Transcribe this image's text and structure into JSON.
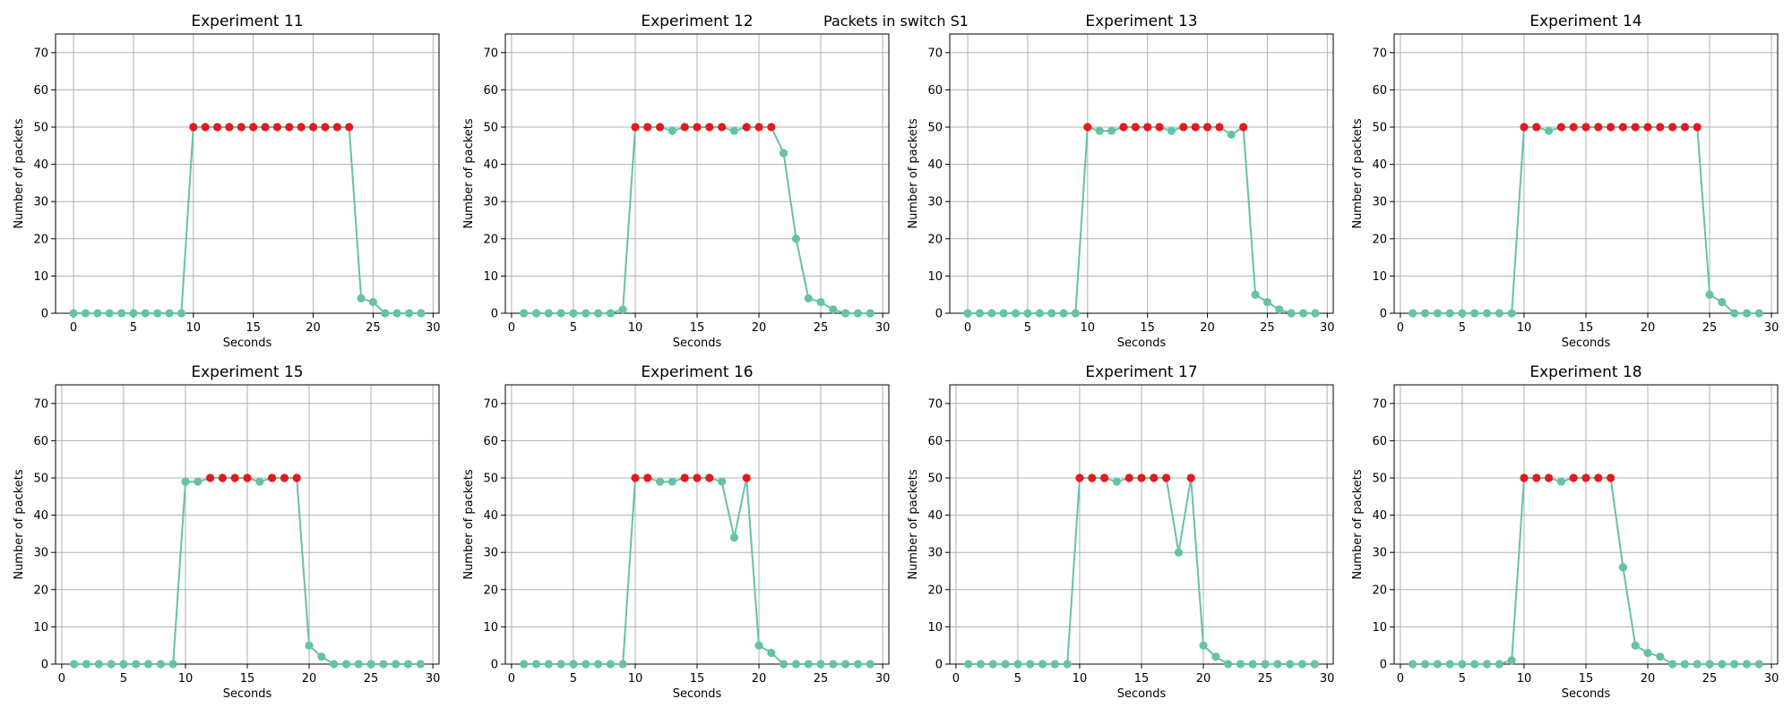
{
  "figure": {
    "suptitle": "Packets in switch S1",
    "colors": {
      "line": "#66c2a5",
      "point": "#66c2a5",
      "highlight": "#e41a1c",
      "grid": "#b0b0b0"
    }
  },
  "chart_data": [
    {
      "type": "line",
      "title": "Experiment 11",
      "xlabel": "Seconds",
      "ylabel": "Number of packets",
      "xlim": [
        -1.5,
        30.5
      ],
      "ylim": [
        0,
        75
      ],
      "xticks": [
        0,
        5,
        10,
        15,
        20,
        25,
        30
      ],
      "yticks": [
        0,
        10,
        20,
        30,
        40,
        50,
        60,
        70
      ],
      "grid": true,
      "x": [
        0,
        1,
        2,
        3,
        4,
        5,
        6,
        7,
        8,
        9,
        10,
        11,
        12,
        13,
        14,
        15,
        16,
        17,
        18,
        19,
        20,
        21,
        22,
        23,
        24,
        25,
        26,
        27,
        28,
        29
      ],
      "y": [
        0,
        0,
        0,
        0,
        0,
        0,
        0,
        0,
        0,
        0,
        50,
        50,
        50,
        50,
        50,
        50,
        50,
        50,
        50,
        50,
        50,
        50,
        50,
        50,
        4,
        3,
        0,
        0,
        0,
        0
      ],
      "highlight_x": [
        10,
        11,
        12,
        13,
        14,
        15,
        16,
        17,
        18,
        19,
        20,
        21,
        22,
        23
      ]
    },
    {
      "type": "line",
      "title": "Experiment 12",
      "xlabel": "Seconds",
      "ylabel": "Number of packets",
      "xlim": [
        -0.5,
        30.5
      ],
      "ylim": [
        0,
        75
      ],
      "xticks": [
        0,
        5,
        10,
        15,
        20,
        25,
        30
      ],
      "yticks": [
        0,
        10,
        20,
        30,
        40,
        50,
        60,
        70
      ],
      "grid": true,
      "x": [
        1,
        2,
        3,
        4,
        5,
        6,
        7,
        8,
        9,
        10,
        11,
        12,
        13,
        14,
        15,
        16,
        17,
        18,
        19,
        20,
        21,
        22,
        23,
        24,
        25,
        26,
        27,
        28,
        29
      ],
      "y": [
        0,
        0,
        0,
        0,
        0,
        0,
        0,
        0,
        1,
        50,
        50,
        50,
        49,
        50,
        50,
        50,
        50,
        49,
        50,
        50,
        50,
        43,
        20,
        4,
        3,
        1,
        0,
        0,
        0
      ],
      "highlight_x": [
        10,
        11,
        12,
        14,
        15,
        16,
        17,
        19,
        20,
        21
      ]
    },
    {
      "type": "line",
      "title": "Experiment 13",
      "xlabel": "Seconds",
      "ylabel": "Number of packets",
      "xlim": [
        -1.5,
        30.5
      ],
      "ylim": [
        0,
        75
      ],
      "xticks": [
        0,
        5,
        10,
        15,
        20,
        25,
        30
      ],
      "yticks": [
        0,
        10,
        20,
        30,
        40,
        50,
        60,
        70
      ],
      "grid": true,
      "x": [
        0,
        1,
        2,
        3,
        4,
        5,
        6,
        7,
        8,
        9,
        10,
        11,
        12,
        13,
        14,
        15,
        16,
        17,
        18,
        19,
        20,
        21,
        22,
        23,
        24,
        25,
        26,
        27,
        28,
        29
      ],
      "y": [
        0,
        0,
        0,
        0,
        0,
        0,
        0,
        0,
        0,
        0,
        50,
        49,
        49,
        50,
        50,
        50,
        50,
        49,
        50,
        50,
        50,
        50,
        48,
        50,
        5,
        3,
        1,
        0,
        0,
        0
      ],
      "highlight_x": [
        10,
        13,
        14,
        15,
        16,
        18,
        19,
        20,
        21,
        23
      ]
    },
    {
      "type": "line",
      "title": "Experiment 14",
      "xlabel": "Seconds",
      "ylabel": "Number of packets",
      "xlim": [
        -0.5,
        30.5
      ],
      "ylim": [
        0,
        75
      ],
      "xticks": [
        0,
        5,
        10,
        15,
        20,
        25,
        30
      ],
      "yticks": [
        0,
        10,
        20,
        30,
        40,
        50,
        60,
        70
      ],
      "grid": true,
      "x": [
        1,
        2,
        3,
        4,
        5,
        6,
        7,
        8,
        9,
        10,
        11,
        12,
        13,
        14,
        15,
        16,
        17,
        18,
        19,
        20,
        21,
        22,
        23,
        24,
        25,
        26,
        27,
        28,
        29
      ],
      "y": [
        0,
        0,
        0,
        0,
        0,
        0,
        0,
        0,
        0,
        50,
        50,
        49,
        50,
        50,
        50,
        50,
        50,
        50,
        50,
        50,
        50,
        50,
        50,
        50,
        5,
        3,
        0,
        0,
        0
      ],
      "highlight_x": [
        10,
        11,
        13,
        14,
        15,
        16,
        17,
        18,
        19,
        20,
        21,
        22,
        23,
        24
      ]
    },
    {
      "type": "line",
      "title": "Experiment 15",
      "xlabel": "Seconds",
      "ylabel": "Number of packets",
      "xlim": [
        -0.5,
        30.5
      ],
      "ylim": [
        0,
        75
      ],
      "xticks": [
        0,
        5,
        10,
        15,
        20,
        25,
        30
      ],
      "yticks": [
        0,
        10,
        20,
        30,
        40,
        50,
        60,
        70
      ],
      "grid": true,
      "x": [
        1,
        2,
        3,
        4,
        5,
        6,
        7,
        8,
        9,
        10,
        11,
        12,
        13,
        14,
        15,
        16,
        17,
        18,
        19,
        20,
        21,
        22,
        23,
        24,
        25,
        26,
        27,
        28,
        29
      ],
      "y": [
        0,
        0,
        0,
        0,
        0,
        0,
        0,
        0,
        0,
        49,
        49,
        50,
        50,
        50,
        50,
        49,
        50,
        50,
        50,
        5,
        2,
        0,
        0,
        0,
        0,
        0,
        0,
        0,
        0
      ],
      "highlight_x": [
        12,
        13,
        14,
        15,
        17,
        18,
        19
      ]
    },
    {
      "type": "line",
      "title": "Experiment 16",
      "xlabel": "Seconds",
      "ylabel": "Number of packets",
      "xlim": [
        -0.5,
        30.5
      ],
      "ylim": [
        0,
        75
      ],
      "xticks": [
        0,
        5,
        10,
        15,
        20,
        25,
        30
      ],
      "yticks": [
        0,
        10,
        20,
        30,
        40,
        50,
        60,
        70
      ],
      "grid": true,
      "x": [
        1,
        2,
        3,
        4,
        5,
        6,
        7,
        8,
        9,
        10,
        11,
        12,
        13,
        14,
        15,
        16,
        17,
        18,
        19,
        20,
        21,
        22,
        23,
        24,
        25,
        26,
        27,
        28,
        29
      ],
      "y": [
        0,
        0,
        0,
        0,
        0,
        0,
        0,
        0,
        0,
        50,
        50,
        49,
        49,
        50,
        50,
        50,
        49,
        34,
        50,
        5,
        3,
        0,
        0,
        0,
        0,
        0,
        0,
        0,
        0
      ],
      "highlight_x": [
        10,
        11,
        14,
        15,
        16,
        19
      ]
    },
    {
      "type": "line",
      "title": "Experiment 17",
      "xlabel": "Seconds",
      "ylabel": "Number of packets",
      "xlim": [
        -0.5,
        30.5
      ],
      "ylim": [
        0,
        75
      ],
      "xticks": [
        0,
        5,
        10,
        15,
        20,
        25,
        30
      ],
      "yticks": [
        0,
        10,
        20,
        30,
        40,
        50,
        60,
        70
      ],
      "grid": true,
      "x": [
        1,
        2,
        3,
        4,
        5,
        6,
        7,
        8,
        9,
        10,
        11,
        12,
        13,
        14,
        15,
        16,
        17,
        18,
        19,
        20,
        21,
        22,
        23,
        24,
        25,
        26,
        27,
        28,
        29
      ],
      "y": [
        0,
        0,
        0,
        0,
        0,
        0,
        0,
        0,
        0,
        50,
        50,
        50,
        49,
        50,
        50,
        50,
        50,
        30,
        50,
        5,
        2,
        0,
        0,
        0,
        0,
        0,
        0,
        0,
        0
      ],
      "highlight_x": [
        10,
        11,
        12,
        14,
        15,
        16,
        17,
        19
      ]
    },
    {
      "type": "line",
      "title": "Experiment 18",
      "xlabel": "Seconds",
      "ylabel": "Number of packets",
      "xlim": [
        -0.5,
        30.5
      ],
      "ylim": [
        0,
        75
      ],
      "xticks": [
        0,
        5,
        10,
        15,
        20,
        25,
        30
      ],
      "yticks": [
        0,
        10,
        20,
        30,
        40,
        50,
        60,
        70
      ],
      "grid": true,
      "x": [
        1,
        2,
        3,
        4,
        5,
        6,
        7,
        8,
        9,
        10,
        11,
        12,
        13,
        14,
        15,
        16,
        17,
        18,
        19,
        20,
        21,
        22,
        23,
        24,
        25,
        26,
        27,
        28,
        29
      ],
      "y": [
        0,
        0,
        0,
        0,
        0,
        0,
        0,
        0,
        1,
        50,
        50,
        50,
        49,
        50,
        50,
        50,
        50,
        26,
        5,
        3,
        2,
        0,
        0,
        0,
        0,
        0,
        0,
        0,
        0
      ],
      "highlight_x": [
        10,
        11,
        12,
        14,
        15,
        16,
        17
      ]
    }
  ]
}
